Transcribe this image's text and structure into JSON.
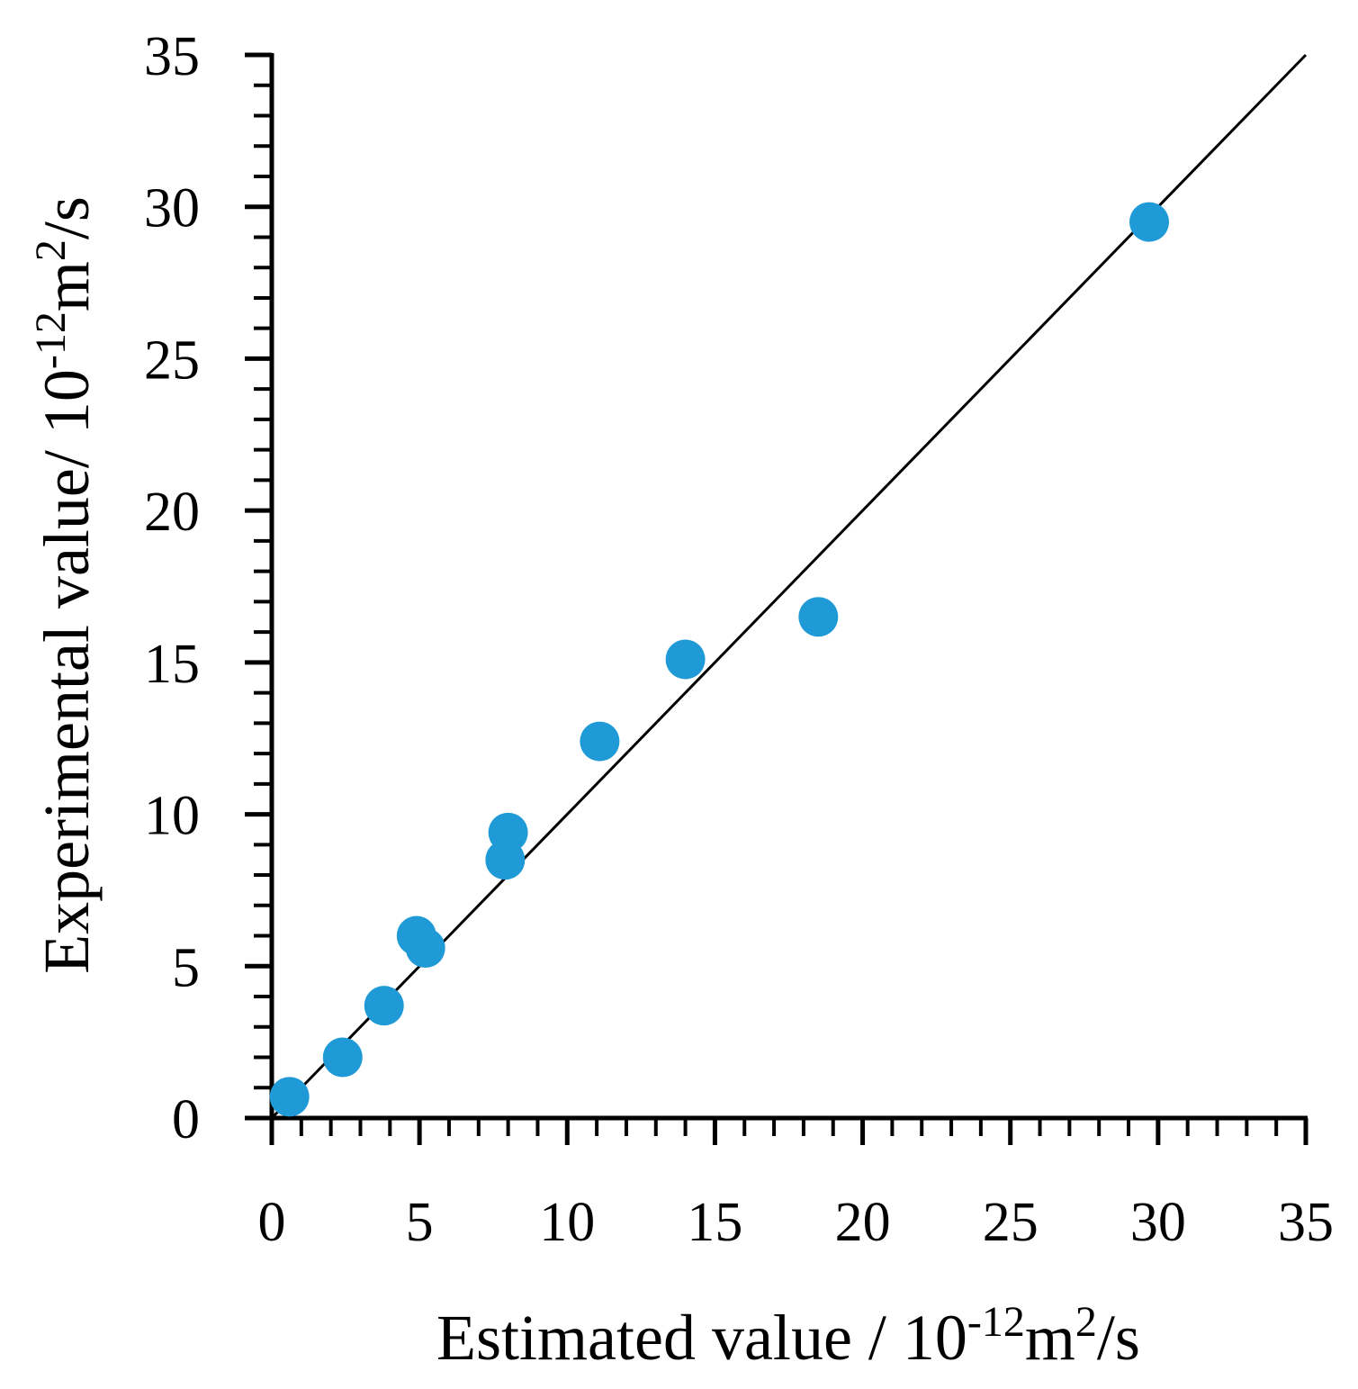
{
  "chart_data": {
    "type": "scatter",
    "title": "",
    "xlabel": {
      "main": "Estimated value / 10",
      "exp": "-12",
      "unit": "m",
      "unit_exp": "2",
      "unit_tail": "/s"
    },
    "ylabel": {
      "main": "Experimental value/ 10",
      "exp": "-12",
      "unit": "m",
      "unit_exp": "2",
      "unit_tail": "/s"
    },
    "xlim": [
      0,
      35
    ],
    "ylim": [
      0,
      35
    ],
    "xticks": [
      "0",
      "5",
      "10",
      "15",
      "20",
      "25",
      "30",
      "35"
    ],
    "yticks": [
      "0",
      "5",
      "10",
      "15",
      "20",
      "25",
      "30",
      "35"
    ],
    "minor_step": 1,
    "reference_line": {
      "from": [
        0,
        0
      ],
      "to": [
        35,
        35
      ],
      "color": "#000000"
    },
    "series": [
      {
        "name": "data",
        "color": "#1f9ad6",
        "points": [
          {
            "x": 0.6,
            "y": 0.7
          },
          {
            "x": 2.4,
            "y": 2.0
          },
          {
            "x": 3.8,
            "y": 3.7
          },
          {
            "x": 4.9,
            "y": 6.0
          },
          {
            "x": 5.2,
            "y": 5.6
          },
          {
            "x": 7.9,
            "y": 8.5
          },
          {
            "x": 8.0,
            "y": 9.4
          },
          {
            "x": 11.1,
            "y": 12.4
          },
          {
            "x": 14.0,
            "y": 15.1
          },
          {
            "x": 18.5,
            "y": 16.5
          },
          {
            "x": 29.7,
            "y": 29.5
          }
        ]
      }
    ]
  }
}
